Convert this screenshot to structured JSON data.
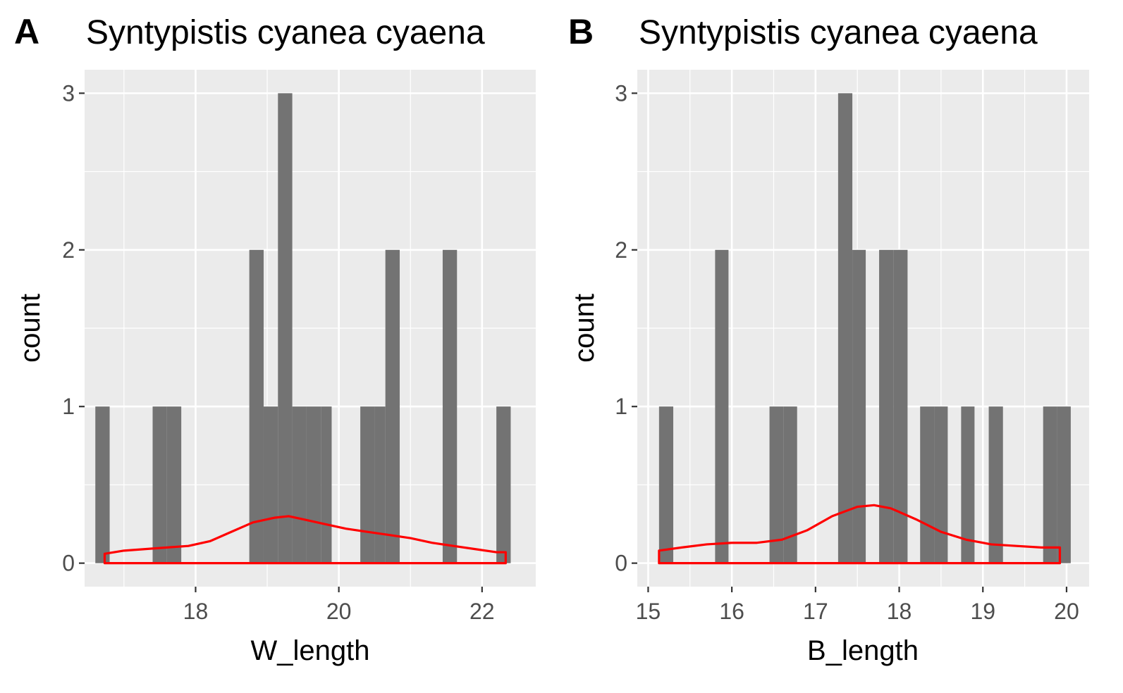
{
  "colors": {
    "panel_background": "#ebebeb",
    "grid_major": "#ffffff",
    "bar_fill": "#737373",
    "density_line": "#ff0000",
    "tick_text": "#4d4d4d",
    "title_text": "#000000"
  },
  "chart_data": [
    {
      "type": "histogram",
      "panel_tag": "A",
      "title": "Syntypistis cyanea cyaena",
      "xlabel": "W_length",
      "ylabel": "count",
      "xlim": [
        16.45,
        22.75
      ],
      "ylim": [
        -0.15,
        3.15
      ],
      "x_ticks": [
        18,
        20,
        22
      ],
      "x_ticks_labels": [
        "18",
        "20",
        "22"
      ],
      "x_minor_ticks": [
        17,
        19,
        21
      ],
      "y_ticks": [
        0,
        1,
        2,
        3
      ],
      "y_ticks_labels": [
        "0",
        "1",
        "2",
        "3"
      ],
      "y_minor_ticks": [
        0.5,
        1.5,
        2.5
      ],
      "grid": true,
      "bins": [
        {
          "x0": 16.6,
          "x1": 16.8,
          "count": 1
        },
        {
          "x0": 17.4,
          "x1": 17.6,
          "count": 1
        },
        {
          "x0": 17.6,
          "x1": 17.8,
          "count": 1
        },
        {
          "x0": 18.75,
          "x1": 18.95,
          "count": 2
        },
        {
          "x0": 18.95,
          "x1": 19.15,
          "count": 1
        },
        {
          "x0": 19.15,
          "x1": 19.35,
          "count": 3
        },
        {
          "x0": 19.35,
          "x1": 19.55,
          "count": 1
        },
        {
          "x0": 19.55,
          "x1": 19.75,
          "count": 1
        },
        {
          "x0": 19.75,
          "x1": 19.9,
          "count": 1
        },
        {
          "x0": 20.3,
          "x1": 20.5,
          "count": 1
        },
        {
          "x0": 20.5,
          "x1": 20.65,
          "count": 1
        },
        {
          "x0": 20.65,
          "x1": 20.85,
          "count": 2
        },
        {
          "x0": 21.45,
          "x1": 21.65,
          "count": 2
        },
        {
          "x0": 22.2,
          "x1": 22.4,
          "count": 1
        }
      ],
      "density": {
        "color": "#ff0000",
        "x": [
          16.73,
          17.0,
          17.3,
          17.6,
          17.9,
          18.2,
          18.5,
          18.8,
          19.1,
          19.3,
          19.5,
          19.8,
          20.1,
          20.4,
          20.7,
          21.0,
          21.3,
          21.6,
          21.9,
          22.2,
          22.33
        ],
        "y": [
          0.06,
          0.08,
          0.09,
          0.1,
          0.11,
          0.14,
          0.2,
          0.26,
          0.29,
          0.3,
          0.28,
          0.25,
          0.22,
          0.2,
          0.18,
          0.16,
          0.13,
          0.11,
          0.09,
          0.07,
          0.07
        ]
      }
    },
    {
      "type": "histogram",
      "panel_tag": "B",
      "title": "Syntypistis cyanea cyaena",
      "xlabel": "B_length",
      "ylabel": "count",
      "xlim": [
        14.87,
        20.27
      ],
      "ylim": [
        -0.15,
        3.15
      ],
      "x_ticks": [
        15,
        16,
        17,
        18,
        19,
        20
      ],
      "x_ticks_labels": [
        "15",
        "16",
        "17",
        "18",
        "19",
        "20"
      ],
      "x_minor_ticks": [
        15.5,
        16.5,
        17.5,
        18.5,
        19.5
      ],
      "y_ticks": [
        0,
        1,
        2,
        3
      ],
      "y_ticks_labels": [
        "0",
        "1",
        "2",
        "3"
      ],
      "y_minor_ticks": [
        0.5,
        1.5,
        2.5
      ],
      "grid": true,
      "bins": [
        {
          "x0": 15.13,
          "x1": 15.3,
          "count": 1
        },
        {
          "x0": 15.8,
          "x1": 15.96,
          "count": 2
        },
        {
          "x0": 16.45,
          "x1": 16.62,
          "count": 1
        },
        {
          "x0": 16.62,
          "x1": 16.78,
          "count": 1
        },
        {
          "x0": 17.27,
          "x1": 17.44,
          "count": 3
        },
        {
          "x0": 17.44,
          "x1": 17.6,
          "count": 2
        },
        {
          "x0": 17.76,
          "x1": 17.93,
          "count": 2
        },
        {
          "x0": 17.93,
          "x1": 18.1,
          "count": 2
        },
        {
          "x0": 18.25,
          "x1": 18.42,
          "count": 1
        },
        {
          "x0": 18.42,
          "x1": 18.58,
          "count": 1
        },
        {
          "x0": 18.74,
          "x1": 18.9,
          "count": 1
        },
        {
          "x0": 19.07,
          "x1": 19.24,
          "count": 1
        },
        {
          "x0": 19.72,
          "x1": 19.89,
          "count": 1
        },
        {
          "x0": 19.89,
          "x1": 20.05,
          "count": 1
        }
      ],
      "density": {
        "color": "#ff0000",
        "x": [
          15.13,
          15.4,
          15.7,
          16.0,
          16.3,
          16.6,
          16.9,
          17.2,
          17.5,
          17.7,
          17.9,
          18.2,
          18.5,
          18.8,
          19.1,
          19.4,
          19.7,
          19.92
        ],
        "y": [
          0.08,
          0.1,
          0.12,
          0.13,
          0.13,
          0.15,
          0.21,
          0.3,
          0.36,
          0.37,
          0.35,
          0.28,
          0.2,
          0.15,
          0.12,
          0.11,
          0.1,
          0.1
        ]
      }
    }
  ]
}
